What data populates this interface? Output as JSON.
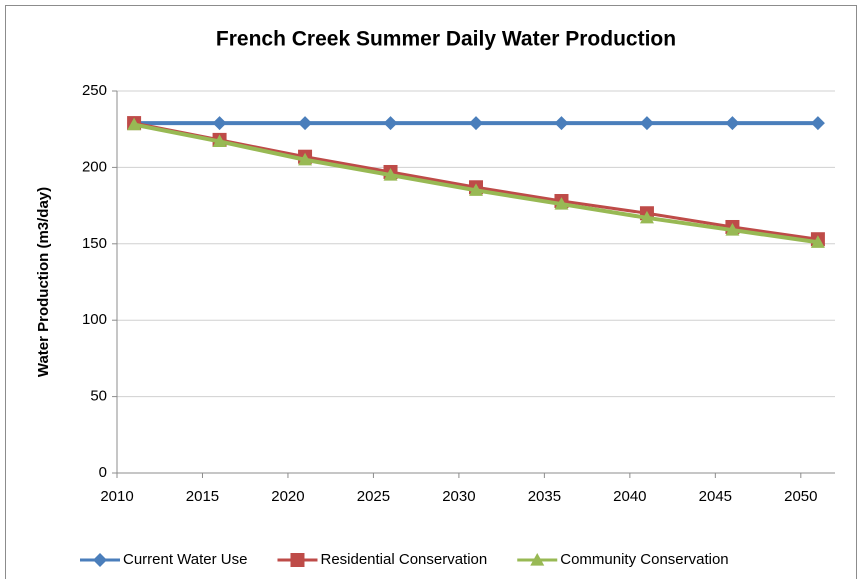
{
  "chart_data": {
    "type": "line",
    "title": "French Creek Summer Daily Water Production",
    "y_label": "Water Production (m3/day)",
    "x": [
      2011,
      2016,
      2021,
      2026,
      2031,
      2036,
      2041,
      2046,
      2051
    ],
    "xlim": [
      2010,
      2052
    ],
    "xticks": [
      2010,
      2015,
      2020,
      2025,
      2030,
      2035,
      2040,
      2045,
      2050
    ],
    "ylim": [
      0,
      250
    ],
    "yticks": [
      0,
      50,
      100,
      150,
      200,
      250
    ],
    "grid": true,
    "legend": "bottom",
    "series": [
      {
        "name": "Current Water Use",
        "color": "#4a7ebb",
        "marker": "diamond",
        "values": [
          229,
          229,
          229,
          229,
          229,
          229,
          229,
          229,
          229
        ]
      },
      {
        "name": "Residential Conservation",
        "color": "#be4b48",
        "marker": "square",
        "values": [
          229,
          218,
          207,
          197,
          187,
          178,
          170,
          161,
          153
        ]
      },
      {
        "name": "Community Conservation",
        "color": "#98b954",
        "marker": "triangle",
        "values": [
          228,
          217,
          205,
          195,
          185,
          176,
          167,
          159,
          151
        ]
      }
    ]
  }
}
